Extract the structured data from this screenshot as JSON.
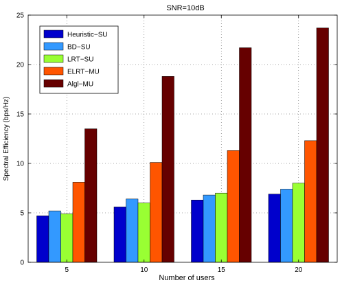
{
  "chart_data": {
    "type": "bar",
    "title": "SNR=10dB",
    "xlabel": "Number of users",
    "ylabel": "Spectral Efficiency (bps/Hz)",
    "categories": [
      "5",
      "10",
      "15",
      "20"
    ],
    "ylim": [
      0,
      25
    ],
    "yticks": [
      "0",
      "5",
      "10",
      "15",
      "20",
      "25"
    ],
    "grid": true,
    "legend_position": "top-left",
    "series": [
      {
        "name": "Heuristic−SU",
        "color": "#0000cc",
        "values": [
          4.7,
          5.6,
          6.3,
          6.9
        ]
      },
      {
        "name": "BD−SU",
        "color": "#3399ff",
        "values": [
          5.2,
          6.4,
          6.8,
          7.4
        ]
      },
      {
        "name": "LRT−SU",
        "color": "#99ff33",
        "values": [
          4.9,
          6.0,
          7.0,
          8.0
        ]
      },
      {
        "name": "ELRT−MU",
        "color": "#ff5500",
        "values": [
          8.1,
          10.1,
          11.3,
          12.3
        ]
      },
      {
        "name": "Algl−MU",
        "color": "#660000",
        "values": [
          13.5,
          18.8,
          21.7,
          23.7
        ]
      }
    ]
  }
}
